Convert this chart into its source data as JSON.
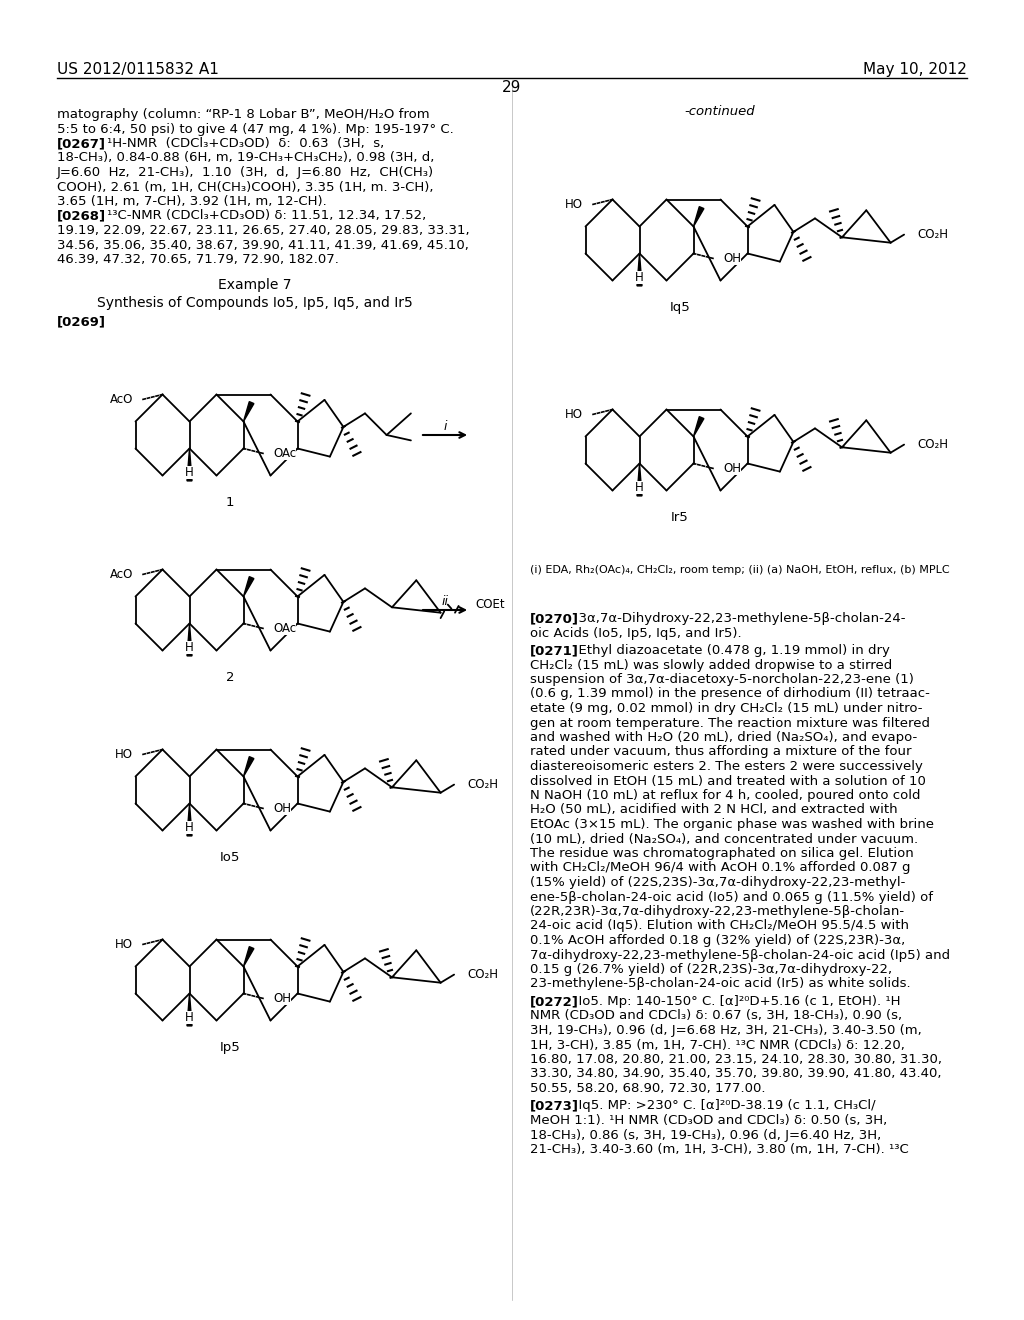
{
  "bg": "#ffffff",
  "header_left": "US 2012/0115832 A1",
  "header_right": "May 10, 2012",
  "page_num": "29",
  "left_col_lines": [
    "matography (column: “RP-1 8 Lobar B”, MeOH/H₂O from",
    "5:5 to 6:4, 50 psi) to give 4 (47 mg, 4 1%). Mp: 195-197° C.",
    "[0267]    ¹H-NMR  (CDCl₃+CD₃OD)  δ:  0.63  (3H,  s,",
    "18-CH₃), 0.84-0.88 (6H, m, 19-CH₃+CH₃CH₂), 0.98 (3H, d,",
    "J=6.60  Hz,  21-CH₃),  1.10  (3H,  d,  J=6.80  Hz,  CH(CH₃)",
    "COOH), 2.61 (m, 1H, CH(CH₃)COOH), 3.35 (1H, m. 3-CH),",
    "3.65 (1H, m, 7-CH), 3.92 (1H, m, 12-CH).",
    "[0268]    ¹³C-NMR (CDCl₃+CD₃OD) δ: 11.51, 12.34, 17.52,",
    "19.19, 22.09, 22.67, 23.11, 26.65, 27.40, 28.05, 29.83, 33.31,",
    "34.56, 35.06, 35.40, 38.67, 39.90, 41.11, 41.39, 41.69, 45.10,",
    "46.39, 47.32, 70.65, 71.79, 72.90, 182.07."
  ],
  "bold_tags_left": [
    "[0267]",
    "[0268]"
  ],
  "example_header": "Example 7",
  "synthesis_header": "Synthesis of Compounds Io5, Ip5, Iq5, and Ir5",
  "tag_0269": "[0269]",
  "right_col_top": "-continued",
  "right_col_lines_270": [
    "[0270]   3α,7α-Dihydroxy-22,23-methylene-5β-cholan-24-",
    "oic Acids (Io5, Ip5, Iq5, and Ir5)."
  ],
  "right_col_lines_271": [
    "[0271]   Ethyl diazoacetate (0.478 g, 1.19 mmol) in dry",
    "CH₂Cl₂ (15 mL) was slowly added dropwise to a stirred",
    "suspension of 3α,7α-diacetoxy-5-norcholan-22,23-ene (1)",
    "(0.6 g, 1.39 mmol) in the presence of dirhodium (II) tetraac-",
    "etate (9 mg, 0.02 mmol) in dry CH₂Cl₂ (15 mL) under nitro-",
    "gen at room temperature. The reaction mixture was filtered",
    "and washed with H₂O (20 mL), dried (Na₂SO₄), and evapo-",
    "rated under vacuum, thus affording a mixture of the four",
    "diastereoisomeric esters 2. The esters 2 were successively",
    "dissolved in EtOH (15 mL) and treated with a solution of 10",
    "N NaOH (10 mL) at reflux for 4 h, cooled, poured onto cold",
    "H₂O (50 mL), acidified with 2 N HCl, and extracted with",
    "EtOAc (3×15 mL). The organic phase was washed with brine",
    "(10 mL), dried (Na₂SO₄), and concentrated under vacuum.",
    "The residue was chromatographated on silica gel. Elution",
    "with CH₂Cl₂/MeOH 96/4 with AcOH 0.1% afforded 0.087 g",
    "(15% yield) of (22S,23S)-3α,7α-dihydroxy-22,23-methyl-",
    "ene-5β-cholan-24-oic acid (Io5) and 0.065 g (11.5% yield) of",
    "(22R,23R)-3α,7α-dihydroxy-22,23-methylene-5β-cholan-",
    "24-oic acid (Iq5). Elution with CH₂Cl₂/MeOH 95.5/4.5 with",
    "0.1% AcOH afforded 0.18 g (32% yield) of (22S,23R)-3α,",
    "7α-dihydroxy-22,23-methylene-5β-cholan-24-oic acid (Ip5) and",
    "0.15 g (26.7% yield) of (22R,23S)-3α,7α-dihydroxy-22,",
    "23-methylene-5β-cholan-24-oic acid (Ir5) as white solids."
  ],
  "right_col_lines_272": [
    "[0272]   Io5. Mp: 140-150° C. [α]²⁰D+5.16 (c 1, EtOH). ¹H",
    "NMR (CD₃OD and CDCl₃) δ: 0.67 (s, 3H, 18-CH₃), 0.90 (s,",
    "3H, 19-CH₃), 0.96 (d, J=6.68 Hz, 3H, 21-CH₃), 3.40-3.50 (m,",
    "1H, 3-CH), 3.85 (m, 1H, 7-CH). ¹³C NMR (CDCl₃) δ: 12.20,",
    "16.80, 17.08, 20.80, 21.00, 23.15, 24.10, 28.30, 30.80, 31.30,",
    "33.30, 34.80, 34.90, 35.40, 35.70, 39.80, 39.90, 41.80, 43.40,",
    "50.55, 58.20, 68.90, 72.30, 177.00."
  ],
  "right_col_lines_273": [
    "[0273]   Iq5. MP: >230° C. [α]²⁰D-38.19 (c 1.1, CH₃Cl/",
    "MeOH 1:1). ¹H NMR (CD₃OD and CDCl₃) δ: 0.50 (s, 3H,",
    "18-CH₃), 0.86 (s, 3H, 19-CH₃), 0.96 (d, J=6.40 Hz, 3H,",
    "21-CH₃), 3.40-3.60 (m, 1H, 3-CH), 3.80 (m, 1H, 7-CH). ¹³C"
  ],
  "reaction_note": "(i) EDA, Rh₂(OAc)₄, CH₂Cl₂, room temp; (ii) (a) NaOH, EtOH, reflux, (b) MPLC"
}
